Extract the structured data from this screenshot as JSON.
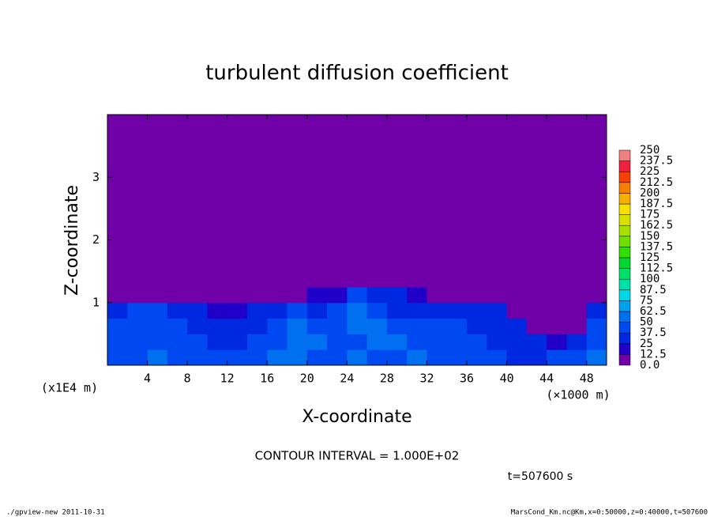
{
  "chart_data": {
    "type": "heatmap",
    "title": "turbulent diffusion coefficient",
    "x_label": "X-coordinate",
    "y_label": "Z-coordinate",
    "x_unit_label": "(×1000 m)",
    "y_unit_label": "(x1E4 m)",
    "xlim": [
      0,
      50
    ],
    "ylim": [
      0,
      4
    ],
    "xticks": [
      4,
      8,
      12,
      16,
      20,
      24,
      28,
      32,
      36,
      40,
      44,
      48
    ],
    "yticks": [
      1,
      2,
      3
    ],
    "x_edges": [
      0,
      2,
      4,
      6,
      8,
      10,
      12,
      14,
      16,
      18,
      20,
      22,
      24,
      26,
      28,
      30,
      32,
      34,
      36,
      38,
      40,
      42,
      44,
      46,
      48,
      50
    ],
    "y_edges": [
      0,
      0.25,
      0.5,
      0.75,
      1,
      1.25,
      4
    ],
    "values": [
      [
        40,
        45,
        60,
        45,
        40,
        40,
        45,
        40,
        50,
        55,
        45,
        40,
        50,
        45,
        45,
        60,
        45,
        40,
        45,
        40,
        35,
        35,
        40,
        45,
        50
      ],
      [
        45,
        40,
        45,
        40,
        40,
        35,
        35,
        40,
        45,
        50,
        55,
        45,
        45,
        55,
        50,
        45,
        40,
        40,
        40,
        35,
        35,
        30,
        20,
        30,
        45
      ],
      [
        40,
        45,
        40,
        40,
        35,
        30,
        25,
        35,
        40,
        50,
        45,
        45,
        60,
        50,
        45,
        40,
        40,
        40,
        35,
        30,
        25,
        10,
        5,
        10,
        40
      ],
      [
        35,
        45,
        40,
        35,
        30,
        20,
        15,
        25,
        35,
        40,
        35,
        40,
        55,
        40,
        35,
        35,
        30,
        30,
        35,
        25,
        10,
        0,
        0,
        5,
        30
      ],
      [
        0,
        0,
        0,
        0,
        0,
        0,
        0,
        5,
        5,
        5,
        15,
        20,
        40,
        25,
        25,
        15,
        5,
        0,
        0,
        0,
        0,
        0,
        0,
        0,
        0
      ],
      [
        0,
        0,
        0,
        0,
        0,
        0,
        0,
        0,
        0,
        0,
        0,
        0,
        0,
        0,
        0,
        0,
        0,
        0,
        0,
        0,
        0,
        0,
        0,
        0,
        0
      ]
    ],
    "colorbar": {
      "levels": [
        {
          "value": 0,
          "label": "0.0"
        },
        12.5,
        25,
        37.5,
        50,
        62.5,
        75,
        87.5,
        100,
        112.5,
        125,
        137.5,
        150,
        162.5,
        175,
        187.5,
        200,
        212.5,
        225,
        237.5,
        250
      ],
      "colors": [
        "#7000a8",
        "#2000c8",
        "#0028e0",
        "#0048f0",
        "#0070f0",
        "#00a0f0",
        "#00d8e8",
        "#00e0a8",
        "#00e068",
        "#00d830",
        "#30e000",
        "#70e000",
        "#a8e000",
        "#d8e000",
        "#f8e000",
        "#f8b000",
        "#f88000",
        "#f84000",
        "#f02040",
        "#f08080"
      ]
    },
    "contour_interval": "CONTOUR INTERVAL = 1.000E+02",
    "time_label": "t=507600 s",
    "footer_left": "./gpview-new  2011-10-31",
    "footer_right": "MarsCond_Km.nc@Km,x=0:50000,z=0:40000,t=507600"
  }
}
